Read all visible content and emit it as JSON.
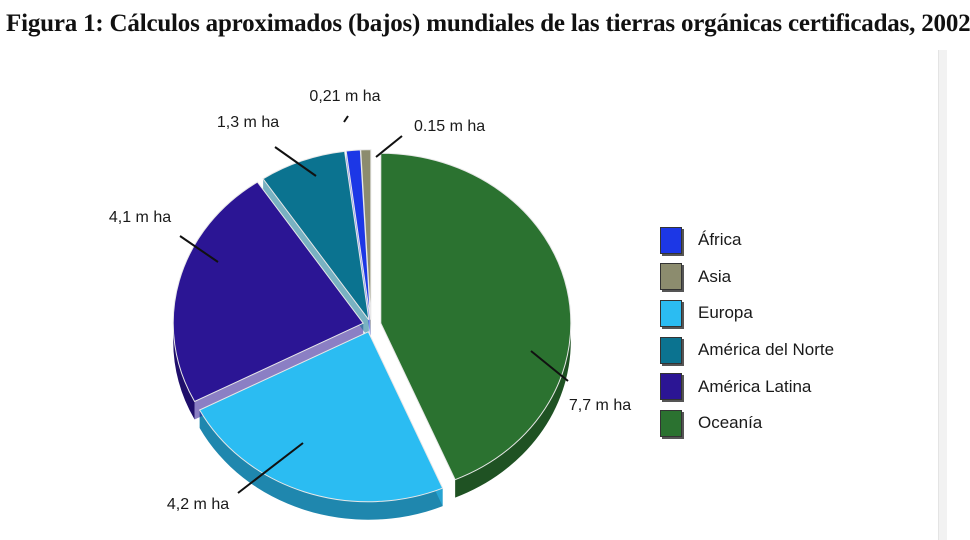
{
  "title": "Figura 1: Cálculos aproximados (bajos) mundiales de las tierras orgánicas certificadas, 2002",
  "chart_data": {
    "type": "pie",
    "unit": "m ha",
    "slices": [
      {
        "name": "África",
        "value": 0.21,
        "label": "0,21 m ha",
        "color": "#1c37e6"
      },
      {
        "name": "Asia",
        "value": 0.15,
        "label": "0.15 m ha",
        "color": "#8c8c6e"
      },
      {
        "name": "Europa",
        "value": 4.2,
        "label": "4,2 m ha",
        "color": "#2bbcf2"
      },
      {
        "name": "América del Norte",
        "value": 1.3,
        "label": "1,3 m ha",
        "color": "#0b7390"
      },
      {
        "name": "América Latina",
        "value": 4.1,
        "label": "4,1 m ha",
        "color": "#2b1594"
      },
      {
        "name": "Oceanía",
        "value": 7.7,
        "label": "7,7 m ha",
        "color": "#2b7230"
      }
    ],
    "legend_position": "right",
    "three_d": true
  }
}
